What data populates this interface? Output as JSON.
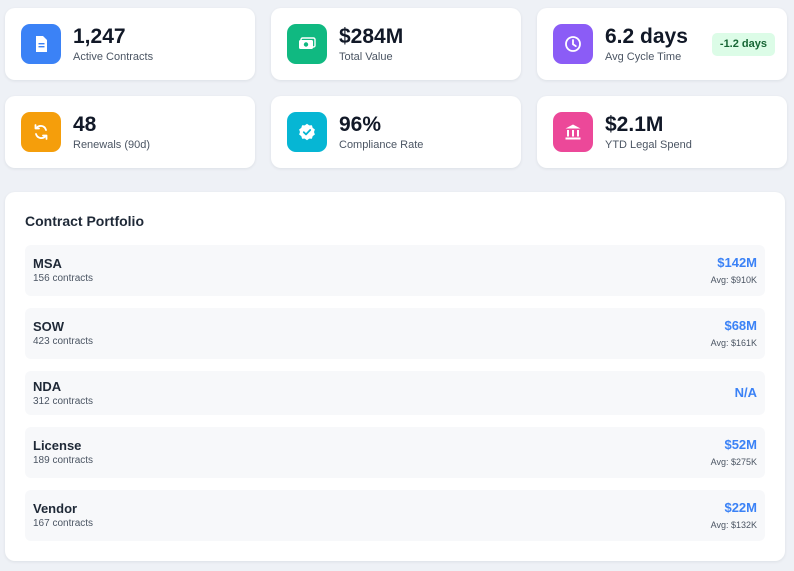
{
  "stats": [
    {
      "value": "1,247",
      "label": "Active Contracts",
      "icon": "document-icon",
      "color": "#3b82f6"
    },
    {
      "value": "$284M",
      "label": "Total Value",
      "icon": "cash-icon",
      "color": "#10b981"
    },
    {
      "value": "6.2 days",
      "label": "Avg Cycle Time",
      "icon": "clock-icon",
      "color": "#8b5cf6",
      "badge": "-1.2 days"
    },
    {
      "value": "48",
      "label": "Renewals (90d)",
      "icon": "refresh-icon",
      "color": "#f59e0b"
    },
    {
      "value": "96%",
      "label": "Compliance Rate",
      "icon": "verified-badge-icon",
      "color": "#06b6d4"
    },
    {
      "value": "$2.1M",
      "label": "YTD Legal Spend",
      "icon": "bank-icon",
      "color": "#ec4899"
    }
  ],
  "portfolio": {
    "title": "Contract Portfolio",
    "items": [
      {
        "name": "MSA",
        "count": "156 contracts",
        "value": "$142M",
        "avg": "Avg: $910K"
      },
      {
        "name": "SOW",
        "count": "423 contracts",
        "value": "$68M",
        "avg": "Avg: $161K"
      },
      {
        "name": "NDA",
        "count": "312 contracts",
        "value": "N/A",
        "avg": ""
      },
      {
        "name": "License",
        "count": "189 contracts",
        "value": "$52M",
        "avg": "Avg: $275K"
      },
      {
        "name": "Vendor",
        "count": "167 contracts",
        "value": "$22M",
        "avg": "Avg: $132K"
      }
    ]
  }
}
